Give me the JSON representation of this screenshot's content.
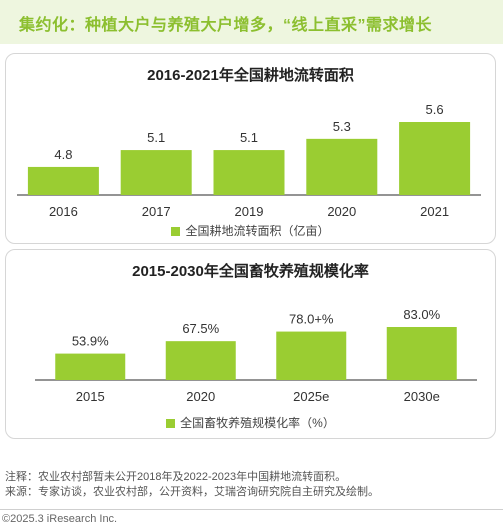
{
  "header": {
    "title": "集约化：种植大户与养殖大户增多，“线上直采”需求增长"
  },
  "chart_data": [
    {
      "type": "bar",
      "title": "2016-2021年全国耕地流转面积",
      "categories": [
        "2016",
        "2017",
        "2019",
        "2020",
        "2021"
      ],
      "series": [
        {
          "name": "全国耕地流转面积（亿亩）",
          "values": [
            4.8,
            5.1,
            5.1,
            5.3,
            5.6
          ],
          "labels": [
            "4.8",
            "5.1",
            "5.1",
            "5.3",
            "5.6"
          ]
        }
      ],
      "ylim": [
        4.3,
        5.6
      ],
      "colors": {
        "bar": "#9acd32"
      }
    },
    {
      "type": "bar",
      "title": "2015-2030年全国畜牧养殖规模化率",
      "categories": [
        "2015",
        "2020",
        "2025e",
        "2030e"
      ],
      "series": [
        {
          "name": "全国畜牧养殖规模化率（%）",
          "values": [
            53.9,
            67.5,
            78.0,
            83.0
          ],
          "labels": [
            "53.9%",
            "67.5%",
            "78.0+%",
            "83.0%"
          ]
        }
      ],
      "ylim": [
        25,
        83
      ],
      "colors": {
        "bar": "#9acd32"
      }
    }
  ],
  "notes": {
    "line1": "注释：农业农村部暂未公开2018年及2022-2023年中国耕地流转面积。",
    "line2": "来源：专家访谈，农业农村部，公开资料，艾瑞咨询研究院自主研究及绘制。"
  },
  "footer": {
    "copyright": "©2025.3 iResearch Inc."
  }
}
